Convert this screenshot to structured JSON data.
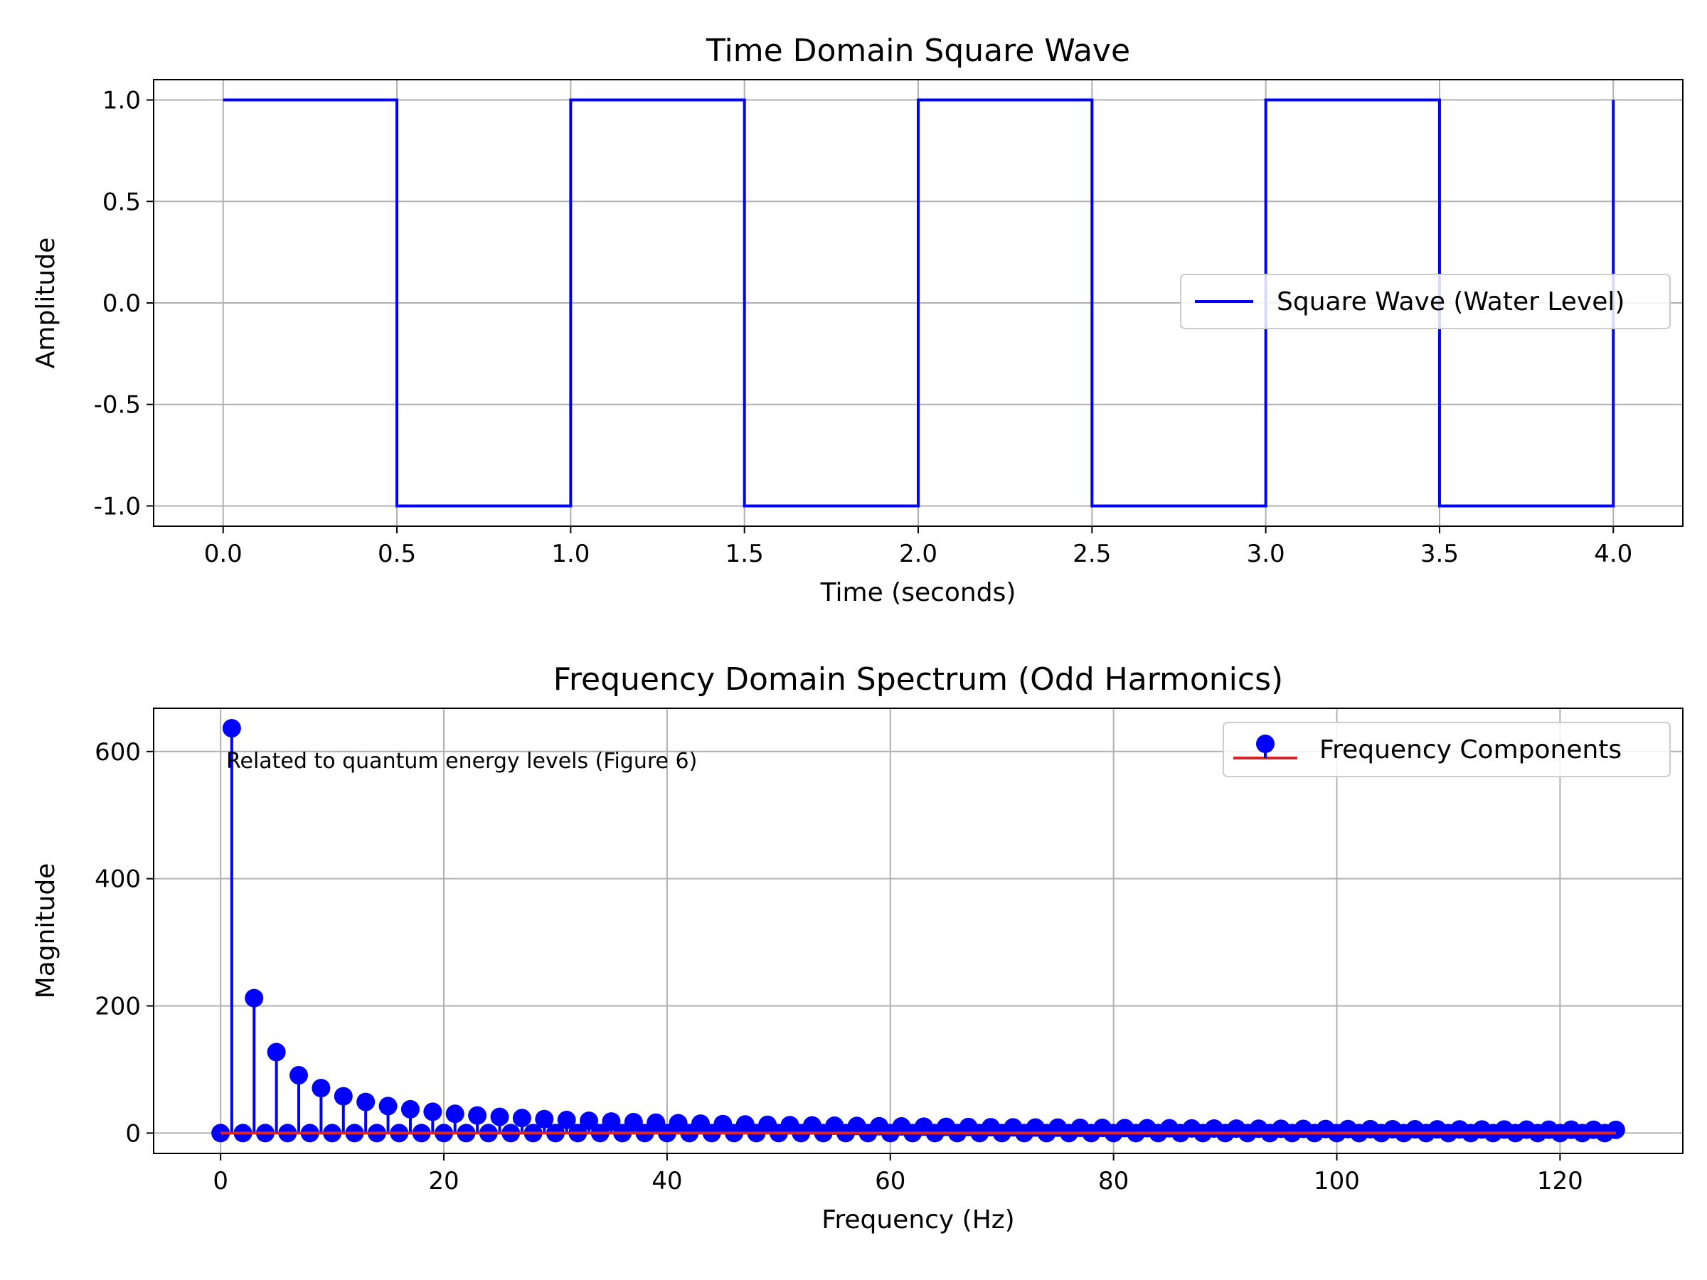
{
  "chart_data": [
    {
      "type": "line",
      "title": "Time Domain Square Wave",
      "xlabel": "Time (seconds)",
      "ylabel": "Amplitude",
      "xlim": [
        -0.2,
        4.2
      ],
      "ylim": [
        -1.1,
        1.1
      ],
      "x_ticks": [
        0.0,
        0.5,
        1.0,
        1.5,
        2.0,
        2.5,
        3.0,
        3.5,
        4.0
      ],
      "x_tick_labels": [
        "0.0",
        "0.5",
        "1.0",
        "1.5",
        "2.0",
        "2.5",
        "3.0",
        "3.5",
        "4.0"
      ],
      "y_ticks": [
        1.0,
        0.5,
        0.0,
        -0.5,
        -1.0
      ],
      "y_tick_labels": [
        "1.0",
        "0.5",
        "0.0",
        "-0.5",
        "-1.0"
      ],
      "grid": true,
      "legend": "center-right",
      "series": [
        {
          "name": "Square Wave (Water Level)",
          "color": "#0000ff",
          "x": [
            0.0,
            0.5,
            0.5,
            1.0,
            1.0,
            1.5,
            1.5,
            2.0,
            2.0,
            2.5,
            2.5,
            3.0,
            3.0,
            3.5,
            3.5,
            4.0,
            4.0
          ],
          "y": [
            1,
            1,
            -1,
            -1,
            1,
            1,
            -1,
            -1,
            1,
            1,
            -1,
            -1,
            1,
            1,
            -1,
            -1,
            1
          ]
        }
      ]
    },
    {
      "type": "stem",
      "title": "Frequency Domain Spectrum (Odd Harmonics)",
      "xlabel": "Frequency (Hz)",
      "ylabel": "Magnitude",
      "xlim": [
        -6,
        131
      ],
      "ylim": [
        -32,
        668
      ],
      "x_ticks": [
        0,
        20,
        40,
        60,
        80,
        100,
        120
      ],
      "x_tick_labels": [
        "0",
        "20",
        "40",
        "60",
        "80",
        "100",
        "120"
      ],
      "y_ticks": [
        600,
        400,
        200,
        0
      ],
      "y_tick_labels": [
        "600",
        "400",
        "200",
        "0"
      ],
      "grid": true,
      "legend": "upper-right",
      "annotation": "Related to quantum energy levels (Figure 6)",
      "series": [
        {
          "name": "Frequency Components",
          "marker_color": "#0000ff",
          "baseline_color": "#d62728",
          "fundamental_magnitude": 636.6,
          "odd_harmonic_rule": "magnitude = fundamental / n for odd n; even frequencies = 0",
          "freq_range": [
            0,
            125
          ],
          "sample_values": {
            "1": 636.6,
            "3": 212.2,
            "5": 127.3,
            "7": 90.9,
            "9": 70.7,
            "11": 57.9,
            "13": 49.0,
            "15": 42.4
          }
        }
      ]
    }
  ]
}
